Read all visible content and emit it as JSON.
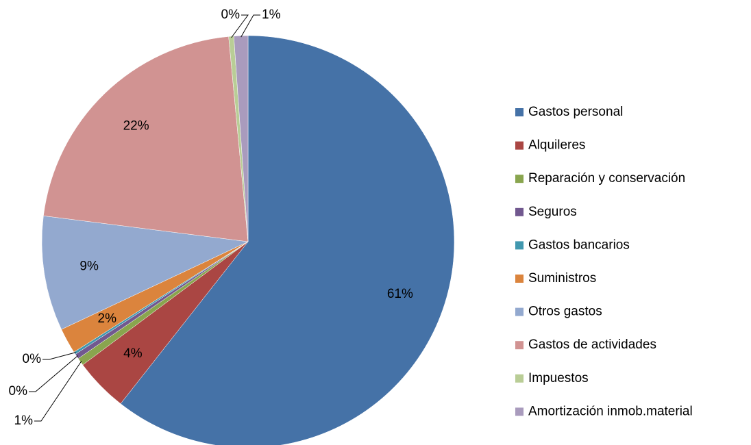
{
  "chart_data": {
    "type": "pie",
    "categories": [
      "Gastos personal",
      "Alquileres",
      "Reparación y conservación",
      "Seguros",
      "Gastos bancarios",
      "Suministros",
      "Otros gastos",
      "Gastos de actividades",
      "Impuestos",
      "Amortización inmob.material"
    ],
    "values": [
      60.6,
      4.2,
      0.6,
      0.4,
      0.2,
      2.0,
      9.0,
      21.5,
      0.4,
      1.1
    ],
    "value_labels": [
      "61%",
      "4%",
      "1%",
      "0%",
      "0%",
      "2%",
      "9%",
      "22%",
      "0%",
      "1%"
    ],
    "colors": [
      "#4572a7",
      "#aa4643",
      "#89a54e",
      "#71588f",
      "#4198af",
      "#db843d",
      "#93a9cf",
      "#d19392",
      "#b9cd96",
      "#a99bbd"
    ],
    "legend": "right"
  }
}
